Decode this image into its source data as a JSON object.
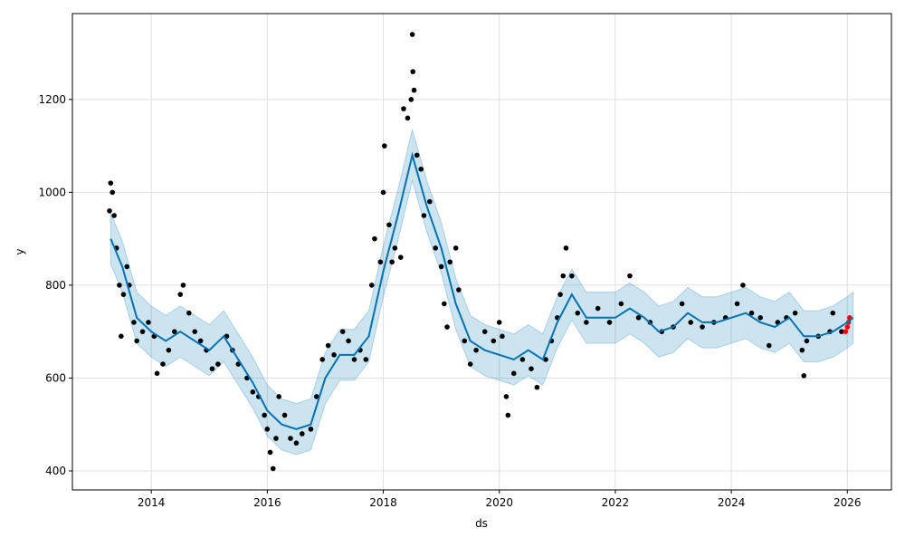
{
  "chart_data": {
    "type": "line",
    "xlabel": "ds",
    "ylabel": "y",
    "xlim": [
      2012.64,
      2026.76
    ],
    "ylim": [
      359,
      1385
    ],
    "xticks": [
      2014,
      2016,
      2018,
      2020,
      2022,
      2024,
      2026
    ],
    "yticks": [
      400,
      600,
      800,
      1000,
      1200
    ],
    "grid": true,
    "x": [
      2013.3,
      2013.5,
      2013.75,
      2014.0,
      2014.25,
      2014.5,
      2014.75,
      2015.0,
      2015.25,
      2015.5,
      2015.75,
      2016.0,
      2016.25,
      2016.5,
      2016.75,
      2017.0,
      2017.25,
      2017.5,
      2017.75,
      2018.0,
      2018.25,
      2018.5,
      2018.75,
      2019.0,
      2019.25,
      2019.5,
      2019.75,
      2020.0,
      2020.25,
      2020.5,
      2020.75,
      2021.0,
      2021.25,
      2021.5,
      2021.75,
      2022.0,
      2022.25,
      2022.5,
      2022.75,
      2023.0,
      2023.25,
      2023.5,
      2023.75,
      2024.0,
      2024.25,
      2024.5,
      2024.75,
      2025.0,
      2025.25,
      2025.5,
      2025.75,
      2026.0,
      2026.1
    ],
    "band": {
      "color": "#0072B2",
      "lower": [
        845,
        785,
        675,
        645,
        625,
        645,
        625,
        605,
        635,
        585,
        535,
        475,
        445,
        435,
        445,
        545,
        595,
        595,
        635,
        775,
        895,
        1025,
        915,
        825,
        705,
        625,
        605,
        595,
        585,
        605,
        585,
        665,
        725,
        675,
        675,
        675,
        695,
        675,
        645,
        655,
        685,
        665,
        665,
        675,
        685,
        665,
        655,
        675,
        635,
        635,
        645,
        665,
        675
      ],
      "upper": [
        955,
        895,
        785,
        755,
        735,
        755,
        735,
        715,
        745,
        695,
        645,
        585,
        555,
        545,
        555,
        655,
        705,
        705,
        745,
        885,
        1005,
        1135,
        1025,
        935,
        815,
        735,
        715,
        705,
        695,
        715,
        695,
        775,
        835,
        785,
        785,
        785,
        805,
        785,
        755,
        765,
        795,
        775,
        775,
        785,
        795,
        775,
        765,
        785,
        745,
        745,
        755,
        775,
        785
      ]
    },
    "series": [
      {
        "color": "#0072B2",
        "values": [
          900,
          840,
          730,
          700,
          680,
          700,
          680,
          660,
          690,
          640,
          590,
          530,
          500,
          490,
          500,
          600,
          650,
          650,
          690,
          830,
          950,
          1080,
          970,
          880,
          760,
          680,
          660,
          650,
          640,
          660,
          640,
          720,
          780,
          730,
          730,
          730,
          750,
          730,
          700,
          710,
          740,
          720,
          720,
          730,
          740,
          720,
          710,
          730,
          690,
          690,
          700,
          720,
          730
        ]
      }
    ],
    "points": [
      {
        "color": "black",
        "x": [
          2013.28,
          2013.3,
          2013.33,
          2013.36,
          2013.4,
          2013.45,
          2013.48,
          2013.52,
          2013.58,
          2013.62,
          2013.7,
          2013.75,
          2013.85,
          2013.95,
          2014.05,
          2014.1,
          2014.2,
          2014.3,
          2014.4,
          2014.5,
          2014.55,
          2014.65,
          2014.75,
          2014.85,
          2014.95,
          2015.05,
          2015.15,
          2015.3,
          2015.4,
          2015.5,
          2015.65,
          2015.75,
          2015.85,
          2015.95,
          2016.0,
          2016.05,
          2016.1,
          2016.15,
          2016.2,
          2016.3,
          2016.4,
          2016.5,
          2016.6,
          2016.75,
          2016.85,
          2016.95,
          2017.05,
          2017.15,
          2017.3,
          2017.4,
          2017.5,
          2017.6,
          2017.7,
          2017.8,
          2017.85,
          2017.95,
          2018.0,
          2018.02,
          2018.1,
          2018.15,
          2018.2,
          2018.3,
          2018.35,
          2018.42,
          2018.48,
          2018.5,
          2018.51,
          2018.53,
          2018.58,
          2018.65,
          2018.7,
          2018.8,
          2018.9,
          2019.0,
          2019.05,
          2019.1,
          2019.15,
          2019.25,
          2019.3,
          2019.4,
          2019.5,
          2019.6,
          2019.75,
          2019.9,
          2020.0,
          2020.05,
          2020.12,
          2020.15,
          2020.25,
          2020.4,
          2020.55,
          2020.65,
          2020.8,
          2020.9,
          2021.0,
          2021.05,
          2021.1,
          2021.15,
          2021.25,
          2021.35,
          2021.5,
          2021.7,
          2021.9,
          2022.1,
          2022.25,
          2022.4,
          2022.6,
          2022.8,
          2023.0,
          2023.15,
          2023.3,
          2023.5,
          2023.7,
          2023.9,
          2024.1,
          2024.2,
          2024.35,
          2024.5,
          2024.65,
          2024.8,
          2024.95,
          2025.1,
          2025.22,
          2025.25,
          2025.3,
          2025.5,
          2025.7,
          2025.75,
          2025.9
        ],
        "values": [
          960,
          1020,
          1000,
          950,
          880,
          800,
          690,
          780,
          840,
          800,
          720,
          680,
          700,
          720,
          690,
          610,
          630,
          660,
          700,
          780,
          800,
          740,
          700,
          680,
          660,
          620,
          630,
          690,
          660,
          630,
          600,
          570,
          560,
          520,
          490,
          440,
          405,
          470,
          560,
          520,
          470,
          460,
          480,
          490,
          560,
          640,
          670,
          650,
          700,
          680,
          640,
          660,
          640,
          800,
          900,
          850,
          1000,
          1100,
          930,
          850,
          880,
          860,
          1180,
          1160,
          1200,
          1340,
          1260,
          1220,
          1080,
          1050,
          950,
          980,
          880,
          840,
          760,
          710,
          850,
          880,
          790,
          680,
          630,
          660,
          700,
          680,
          720,
          690,
          560,
          520,
          610,
          640,
          620,
          580,
          640,
          680,
          730,
          780,
          820,
          880,
          820,
          740,
          720,
          750,
          720,
          760,
          820,
          730,
          720,
          700,
          710,
          760,
          720,
          710,
          720,
          730,
          760,
          800,
          740,
          730,
          670,
          720,
          730,
          740,
          660,
          605,
          680,
          690,
          700,
          740,
          700
        ]
      },
      {
        "color": "red",
        "x": [
          2025.97,
          2026.0,
          2026.02,
          2026.04
        ],
        "values": [
          700,
          710,
          720,
          730
        ]
      }
    ]
  }
}
